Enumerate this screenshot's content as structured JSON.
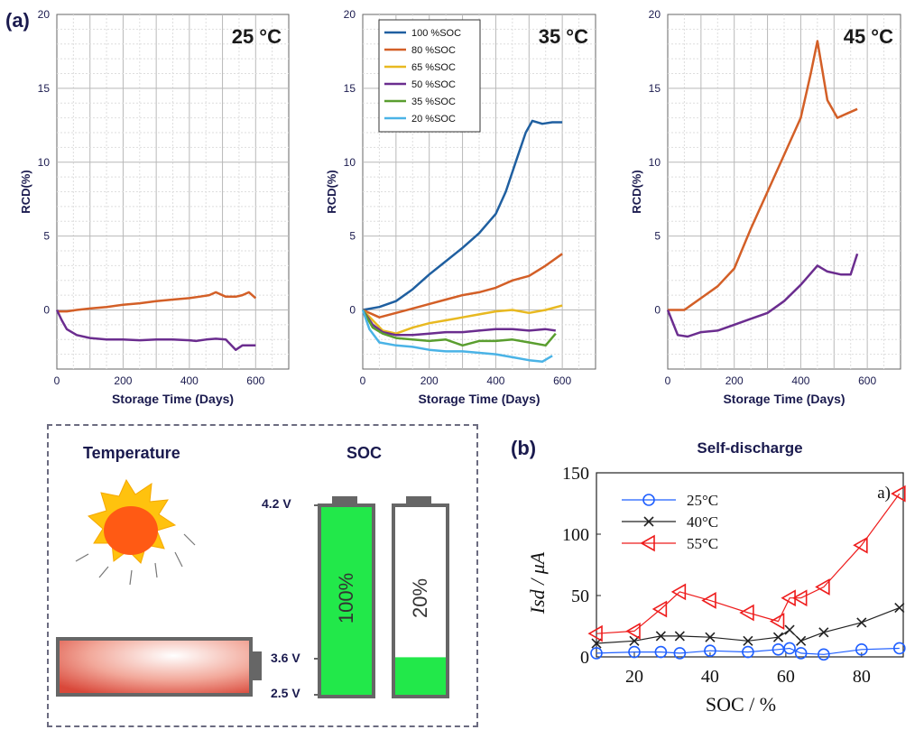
{
  "panel_labels": {
    "a": "(a)",
    "b": "(b)"
  },
  "chart_data": [
    {
      "type": "line",
      "panel": "(a)",
      "annotation": "25 °C",
      "xlabel": "Storage Time (Days)",
      "ylabel": "RCD(%)",
      "xlim": [
        0,
        700
      ],
      "ylim": [
        -4,
        20
      ],
      "xticks": [
        0,
        200,
        400,
        600
      ],
      "yticks": [
        0,
        5,
        10,
        15,
        20
      ],
      "grid": true,
      "series": [
        {
          "color": "#d35f27",
          "x": [
            0,
            30,
            60,
            100,
            150,
            200,
            250,
            300,
            350,
            400,
            430,
            460,
            480,
            510,
            540,
            560,
            580,
            600
          ],
          "y": [
            -0.1,
            -0.1,
            0.0,
            0.1,
            0.2,
            0.35,
            0.45,
            0.6,
            0.7,
            0.8,
            0.9,
            1.0,
            1.2,
            0.9,
            0.9,
            1.0,
            1.2,
            0.8
          ]
        },
        {
          "color": "#6b2d8f",
          "x": [
            0,
            15,
            30,
            60,
            100,
            150,
            200,
            250,
            300,
            350,
            400,
            420,
            450,
            480,
            510,
            540,
            560,
            580,
            600
          ],
          "y": [
            0,
            -0.7,
            -1.3,
            -1.7,
            -1.9,
            -2.0,
            -2.0,
            -2.05,
            -2.0,
            -2.0,
            -2.05,
            -2.1,
            -2.0,
            -1.95,
            -2.0,
            -2.7,
            -2.4,
            -2.4,
            -2.4
          ]
        }
      ]
    },
    {
      "type": "line",
      "annotation": "35 °C",
      "xlabel": "Storage Time (Days)",
      "ylabel": "RCD(%)",
      "xlim": [
        0,
        700
      ],
      "ylim": [
        -4,
        20
      ],
      "xticks": [
        0,
        200,
        400,
        600
      ],
      "yticks": [
        0,
        5,
        10,
        15,
        20
      ],
      "grid": true,
      "legend_position": "top-left",
      "series": [
        {
          "name": "100 %SOC",
          "color": "#1f5fa0",
          "x": [
            0,
            50,
            100,
            150,
            200,
            250,
            300,
            350,
            400,
            430,
            460,
            490,
            510,
            540,
            570,
            600
          ],
          "y": [
            0,
            0.2,
            0.6,
            1.4,
            2.4,
            3.3,
            4.2,
            5.2,
            6.5,
            8.0,
            10.0,
            12.0,
            12.8,
            12.6,
            12.7,
            12.7
          ]
        },
        {
          "name": "80 %SOC",
          "color": "#d35f27",
          "x": [
            0,
            50,
            100,
            150,
            200,
            250,
            300,
            350,
            400,
            450,
            500,
            550,
            600
          ],
          "y": [
            0,
            -0.5,
            -0.2,
            0.1,
            0.4,
            0.7,
            1.0,
            1.2,
            1.5,
            2.0,
            2.3,
            3.0,
            3.8
          ]
        },
        {
          "name": "65 %SOC",
          "color": "#e8b921",
          "x": [
            0,
            30,
            60,
            100,
            150,
            200,
            250,
            300,
            350,
            400,
            450,
            500,
            550,
            600
          ],
          "y": [
            0,
            -0.7,
            -1.4,
            -1.6,
            -1.2,
            -0.9,
            -0.7,
            -0.5,
            -0.3,
            -0.1,
            0.0,
            -0.2,
            0.0,
            0.3
          ]
        },
        {
          "name": "50 %SOC",
          "color": "#6b2d8f",
          "x": [
            0,
            30,
            60,
            100,
            150,
            200,
            250,
            300,
            350,
            400,
            450,
            500,
            550,
            580
          ],
          "y": [
            0,
            -1.0,
            -1.5,
            -1.7,
            -1.7,
            -1.6,
            -1.5,
            -1.5,
            -1.4,
            -1.3,
            -1.3,
            -1.4,
            -1.3,
            -1.4
          ]
        },
        {
          "name": "35 %SOC",
          "color": "#5a9e2f",
          "x": [
            0,
            30,
            60,
            100,
            150,
            200,
            250,
            300,
            350,
            400,
            450,
            500,
            550,
            580
          ],
          "y": [
            0,
            -1.2,
            -1.6,
            -1.9,
            -2.0,
            -2.1,
            -2.0,
            -2.4,
            -2.1,
            -2.1,
            -2.0,
            -2.2,
            -2.4,
            -1.6
          ]
        },
        {
          "name": "20 %SOC",
          "color": "#4ab3e6",
          "x": [
            0,
            20,
            50,
            100,
            150,
            200,
            250,
            300,
            350,
            400,
            450,
            500,
            540,
            570
          ],
          "y": [
            0,
            -1.3,
            -2.2,
            -2.4,
            -2.5,
            -2.7,
            -2.8,
            -2.8,
            -2.9,
            -3.0,
            -3.2,
            -3.4,
            -3.5,
            -3.1
          ]
        }
      ]
    },
    {
      "type": "line",
      "annotation": "45 °C",
      "xlabel": "Storage Time (Days)",
      "ylabel": "RCD(%)",
      "xlim": [
        0,
        700
      ],
      "ylim": [
        -4,
        20
      ],
      "xticks": [
        0,
        200,
        400,
        600
      ],
      "yticks": [
        0,
        5,
        10,
        15,
        20
      ],
      "grid": true,
      "series": [
        {
          "color": "#d35f27",
          "x": [
            0,
            50,
            100,
            150,
            200,
            250,
            300,
            350,
            400,
            430,
            450,
            480,
            510,
            540,
            570
          ],
          "y": [
            0,
            0.0,
            0.8,
            1.6,
            2.8,
            5.5,
            8.0,
            10.5,
            13.0,
            16.0,
            18.2,
            14.2,
            13.0,
            13.3,
            13.6
          ]
        },
        {
          "color": "#6b2d8f",
          "x": [
            0,
            30,
            60,
            100,
            150,
            200,
            250,
            300,
            350,
            400,
            450,
            480,
            520,
            550,
            570
          ],
          "y": [
            0,
            -1.7,
            -1.8,
            -1.5,
            -1.4,
            -1.0,
            -0.6,
            -0.2,
            0.6,
            1.7,
            3.0,
            2.6,
            2.4,
            2.4,
            3.8
          ]
        }
      ]
    },
    {
      "type": "line",
      "panel": "(b)",
      "title": "Self-discharge",
      "annotation": "a)",
      "xlabel": "SOC / %",
      "ylabel": "Isd / μA",
      "xlim": [
        10,
        91
      ],
      "ylim": [
        0,
        150
      ],
      "xticks": [
        20,
        40,
        60,
        80
      ],
      "yticks": [
        0,
        50,
        100,
        150
      ],
      "legend_position": "top-left",
      "series": [
        {
          "name": "25°C",
          "color": "#1f5fff",
          "marker": "circle",
          "x": [
            10,
            20,
            27,
            32,
            40,
            50,
            58,
            61,
            64,
            70,
            80,
            90
          ],
          "y": [
            3,
            4,
            4,
            3,
            5,
            4,
            6,
            7,
            3,
            2,
            6,
            7
          ]
        },
        {
          "name": "40°C",
          "color": "#222222",
          "marker": "x",
          "x": [
            10,
            20,
            27,
            32,
            40,
            50,
            58,
            61,
            64,
            70,
            80,
            90
          ],
          "y": [
            11,
            13,
            17,
            17,
            16,
            13,
            16,
            22,
            13,
            20,
            28,
            40
          ]
        },
        {
          "name": "55°C",
          "color": "#ee1c1c",
          "marker": "triangle-left",
          "x": [
            10,
            20,
            27,
            32,
            40,
            50,
            58,
            61,
            64,
            70,
            80,
            90
          ],
          "y": [
            19,
            21,
            39,
            53,
            46,
            36,
            29,
            48,
            48,
            57,
            91,
            133
          ]
        }
      ]
    }
  ],
  "diagram": {
    "temperature_label": "Temperature",
    "soc_label": "SOC",
    "voltages": [
      "4.2 V",
      "3.6 V",
      "2.5 V"
    ],
    "battery_full_label": "100%",
    "battery_low_label": "20%",
    "battery_full_level": 1.0,
    "battery_low_level": 0.2,
    "green": "#22e84a"
  }
}
